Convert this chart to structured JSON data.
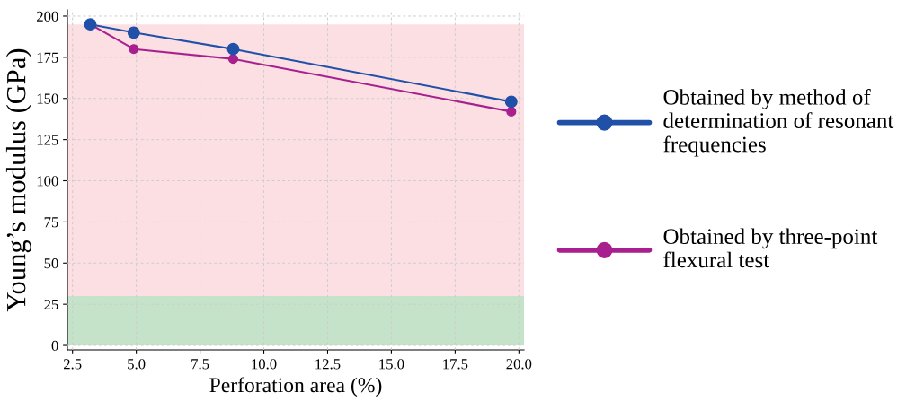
{
  "chart_data": {
    "type": "line",
    "xlabel": "Perforation area (%)",
    "ylabel": "Young’s modulus (GPa)",
    "x": [
      3.2,
      4.9,
      8.8,
      19.7
    ],
    "series": [
      {
        "name": "Obtained by method of\ndetermination of resonant\nfrequencies",
        "color": "#2150a8",
        "values": [
          195,
          190,
          180,
          148
        ]
      },
      {
        "name": "Obtained by three-point\nflexural test",
        "color": "#a8208e",
        "values": [
          195,
          180,
          174,
          142
        ]
      }
    ],
    "bands": [
      {
        "axis": "y",
        "from": 0,
        "to": 30,
        "color": "#c4e3c9"
      },
      {
        "axis": "y",
        "from": 30,
        "to": 195,
        "color": "#fbdfe3"
      }
    ],
    "xlim": [
      2.3,
      20.2
    ],
    "ylim": [
      -2.7,
      203.8
    ],
    "xticks": [
      {
        "value": 2.5,
        "label": "2.5"
      },
      {
        "value": 5,
        "label": "5.0"
      },
      {
        "value": 7.5,
        "label": "7.5"
      },
      {
        "value": 10,
        "label": "10.0"
      },
      {
        "value": 12.5,
        "label": "12.5"
      },
      {
        "value": 15,
        "label": "15.0"
      },
      {
        "value": 17.5,
        "label": "17.5"
      },
      {
        "value": 20,
        "label": "20.0"
      }
    ],
    "yticks": [
      0,
      25,
      50,
      75,
      100,
      125,
      150,
      175,
      200
    ],
    "grid": true,
    "legend": "right",
    "marker": "circle",
    "line_style": "solid"
  }
}
